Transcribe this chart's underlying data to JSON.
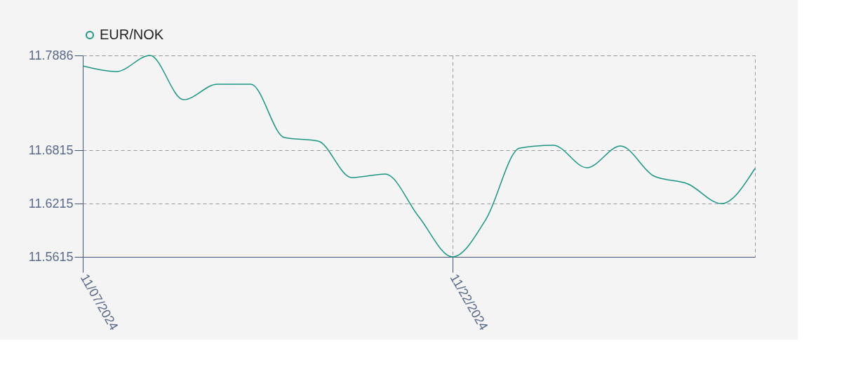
{
  "chart_data": {
    "type": "line",
    "categories": [
      "11/07/2024",
      null,
      null,
      null,
      null,
      null,
      null,
      null,
      null,
      null,
      null,
      "11/22/2024",
      null,
      null,
      null,
      null,
      null,
      null,
      null,
      null,
      null
    ],
    "series": [
      {
        "name": "EUR/NOK",
        "color": "#1a9683",
        "values": [
          11.7767,
          11.7704,
          11.7886,
          11.7387,
          11.7561,
          11.7561,
          11.696,
          11.6921,
          11.6509,
          11.6549,
          11.6066,
          11.5615,
          11.6042,
          11.6841,
          11.6873,
          11.662,
          11.6865,
          11.6525,
          11.6438,
          11.6216,
          11.6612
        ]
      }
    ],
    "ylim": [
      11.5615,
      11.7886
    ],
    "yticks": [
      11.5615,
      11.6215,
      11.6815,
      11.7886
    ],
    "grid": true,
    "legend": "top"
  }
}
